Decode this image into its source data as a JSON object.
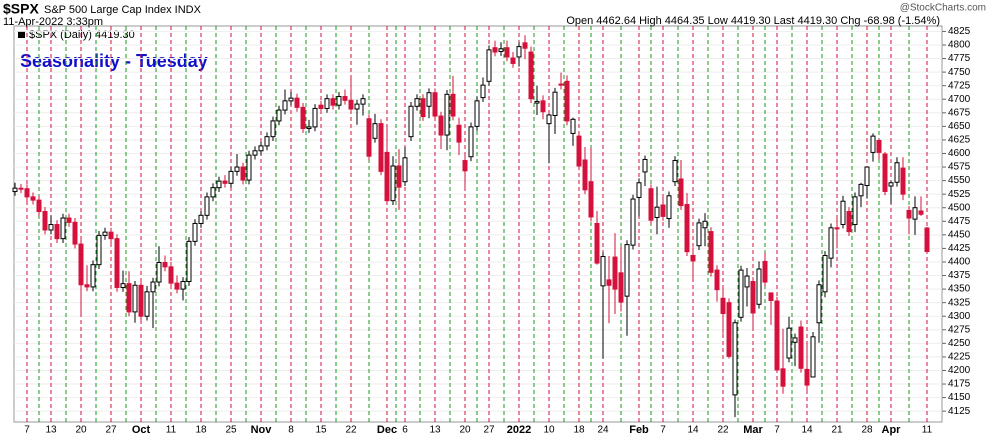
{
  "chart_data": {
    "type": "candlestick",
    "title": "$SPX",
    "subtitle": "S&P 500 Large Cap Index INDX",
    "date": "11-Apr-2022 3:33pm",
    "quote": "Open 4462.64 High 4464.35 Low 4419.30 Last 4419.30 Chg -68.98 (-1.54%)",
    "credit": "@StockCharts.com",
    "legend": "$SPX (Daily) 4419.30",
    "annotation": "Seasonality - Tuesday",
    "up_color": "#000000",
    "down_color": "#d6103c",
    "annotation_color": "#1010cc",
    "grid": true,
    "ylim": [
      4105,
      4835
    ],
    "yticks": [
      4125,
      4150,
      4175,
      4200,
      4225,
      4250,
      4275,
      4300,
      4325,
      4350,
      4375,
      4400,
      4425,
      4450,
      4475,
      4500,
      4525,
      4550,
      4575,
      4600,
      4625,
      4650,
      4675,
      4700,
      4725,
      4750,
      4775,
      4800,
      4825
    ],
    "categories": [
      null,
      null,
      "7",
      null,
      null,
      null,
      "13",
      null,
      null,
      null,
      null,
      "20",
      null,
      null,
      null,
      null,
      "27",
      null,
      null,
      null,
      null,
      "Oct",
      null,
      null,
      null,
      null,
      "11",
      null,
      null,
      null,
      null,
      "18",
      null,
      null,
      null,
      null,
      "25",
      null,
      null,
      null,
      null,
      "Nov",
      null,
      null,
      null,
      null,
      "8",
      null,
      null,
      null,
      null,
      "15",
      null,
      null,
      null,
      null,
      "22",
      null,
      null,
      null,
      null,
      null,
      "Dec",
      null,
      null,
      "6",
      null,
      null,
      null,
      null,
      "13",
      null,
      null,
      null,
      null,
      "20",
      null,
      null,
      null,
      "27",
      null,
      null,
      null,
      null,
      "2022",
      null,
      null,
      null,
      null,
      "10",
      null,
      null,
      null,
      null,
      "18",
      null,
      null,
      null,
      "24",
      null,
      null,
      null,
      null,
      null,
      "Feb",
      null,
      null,
      null,
      "7",
      null,
      null,
      null,
      null,
      "14",
      null,
      null,
      null,
      null,
      "22",
      null,
      null,
      null,
      null,
      "Mar",
      null,
      null,
      null,
      "7",
      null,
      null,
      null,
      null,
      "14",
      null,
      null,
      null,
      null,
      "21",
      null,
      null,
      null,
      null,
      "28",
      null,
      null,
      null,
      "Apr",
      null,
      null,
      null,
      null,
      null,
      "11"
    ],
    "open": [
      4530,
      4536,
      4535,
      4520,
      4514,
      4493,
      4459,
      4469,
      4443,
      4481,
      4473,
      4433,
      4358,
      4354,
      4395,
      4449,
      4455,
      4443,
      4353,
      4360,
      4308,
      4357,
      4300,
      4345,
      4363,
      4399,
      4391,
      4361,
      4350,
      4364,
      4438,
      4471,
      4486,
      4520,
      4537,
      4549,
      4545,
      4567,
      4575,
      4551,
      4597,
      4605,
      4614,
      4631,
      4660,
      4680,
      4697,
      4702,
      4685,
      4646,
      4649,
      4689,
      4683,
      4701,
      4689,
      4705,
      4698,
      4682,
      4691,
      4664,
      4628,
      4655,
      4602,
      4513,
      4577,
      4548,
      4631,
      4687,
      4701,
      4687,
      4712,
      4669,
      4634,
      4709,
      4652,
      4587,
      4594,
      4650,
      4703,
      4733,
      4795,
      4788,
      4795,
      4776,
      4778,
      4804,
      4787,
      4693,
      4697,
      4655,
      4670,
      4728,
      4733,
      4637,
      4632,
      4588,
      4548,
      4471,
      4356,
      4367,
      4409,
      4380,
      4337,
      4431,
      4519,
      4566,
      4535,
      4482,
      4505,
      4480,
      4548,
      4553,
      4506,
      4412,
      4430,
      4463,
      4456,
      4385,
      4333,
      4325,
      4155,
      4298,
      4354,
      4364,
      4322,
      4401,
      4343,
      4328,
      4203,
      4223,
      4252,
      4280,
      4202,
      4188,
      4288,
      4345,
      4407,
      4463,
      4469,
      4493,
      4469,
      4522,
      4541,
      4602,
      4624,
      4599,
      4540,
      4547,
      4573,
      4495,
      4479,
      4494,
      4462.64
    ],
    "high": [
      4546,
      4544,
      4543,
      4528,
      4522,
      4501,
      4486,
      4477,
      4489,
      4489,
      4481,
      4441,
      4394,
      4403,
      4457,
      4463,
      4463,
      4451,
      4384,
      4383,
      4365,
      4365,
      4356,
      4371,
      4429,
      4412,
      4400,
      4375,
      4372,
      4446,
      4479,
      4494,
      4528,
      4545,
      4557,
      4560,
      4575,
      4599,
      4583,
      4605,
      4613,
      4622,
      4639,
      4668,
      4688,
      4718,
      4714,
      4710,
      4693,
      4662,
      4691,
      4697,
      4709,
      4709,
      4713,
      4718,
      4744,
      4699,
      4709,
      4672,
      4673,
      4663,
      4652,
      4595,
      4608,
      4612,
      4695,
      4709,
      4709,
      4720,
      4720,
      4677,
      4717,
      4743,
      4666,
      4596,
      4657,
      4705,
      4740,
      4799,
      4808,
      4805,
      4808,
      4787,
      4805,
      4818,
      4797,
      4725,
      4707,
      4673,
      4721,
      4749,
      4744,
      4666,
      4640,
      4612,
      4611,
      4494,
      4418,
      4411,
      4453,
      4429,
      4440,
      4524,
      4554,
      4596,
      4543,
      4539,
      4521,
      4530,
      4595,
      4588,
      4527,
      4427,
      4480,
      4490,
      4464,
      4394,
      4357,
      4333,
      4294,
      4393,
      4389,
      4372,
      4401,
      4417,
      4343,
      4336,
      4277,
      4299,
      4268,
      4292,
      4247,
      4271,
      4366,
      4420,
      4471,
      4481,
      4522,
      4501,
      4528,
      4546,
      4575,
      4637,
      4627,
      4603,
      4549,
      4593,
      4593,
      4503,
      4521,
      4521,
      4464.35
    ],
    "low": [
      4522,
      4527,
      4512,
      4506,
      4485,
      4451,
      4451,
      4435,
      4435,
      4465,
      4425,
      4305,
      4346,
      4346,
      4387,
      4441,
      4435,
      4345,
      4345,
      4300,
      4288,
      4288,
      4292,
      4278,
      4355,
      4383,
      4353,
      4342,
      4329,
      4356,
      4430,
      4463,
      4478,
      4512,
      4529,
      4537,
      4537,
      4559,
      4543,
      4543,
      4589,
      4597,
      4606,
      4623,
      4652,
      4672,
      4689,
      4677,
      4638,
      4638,
      4641,
      4675,
      4675,
      4681,
      4681,
      4690,
      4674,
      4653,
      4670,
      4587,
      4620,
      4560,
      4510,
      4505,
      4496,
      4540,
      4623,
      4679,
      4660,
      4665,
      4661,
      4608,
      4606,
      4661,
      4597,
      4532,
      4586,
      4642,
      4695,
      4725,
      4779,
      4780,
      4770,
      4758,
      4760,
      4774,
      4693,
      4671,
      4663,
      4582,
      4636,
      4718,
      4652,
      4614,
      4569,
      4525,
      4475,
      4395,
      4222,
      4287,
      4304,
      4309,
      4264,
      4423,
      4484,
      4540,
      4469,
      4451,
      4476,
      4463,
      4540,
      4496,
      4411,
      4365,
      4422,
      4429,
      4373,
      4327,
      4268,
      4222,
      4114,
      4290,
      4318,
      4277,
      4314,
      4355,
      4284,
      4199,
      4157,
      4215,
      4208,
      4196,
      4161,
      4187,
      4251,
      4335,
      4390,
      4425,
      4462,
      4448,
      4455,
      4501,
      4517,
      4585,
      4589,
      4523,
      4507,
      4539,
      4514,
      4451,
      4450,
      4485,
      4419.3
    ],
    "close": [
      4536,
      4535,
      4520,
      4514,
      4493,
      4459,
      4469,
      4443,
      4481,
      4473,
      4433,
      4358,
      4354,
      4395,
      4449,
      4455,
      4443,
      4353,
      4360,
      4308,
      4357,
      4300,
      4345,
      4363,
      4399,
      4391,
      4361,
      4350,
      4364,
      4438,
      4471,
      4486,
      4520,
      4537,
      4549,
      4545,
      4567,
      4575,
      4551,
      4597,
      4605,
      4614,
      4631,
      4660,
      4680,
      4697,
      4702,
      4685,
      4646,
      4649,
      4683,
      4683,
      4701,
      4689,
      4705,
      4698,
      4682,
      4691,
      4701,
      4595,
      4655,
      4567,
      4513,
      4577,
      4538,
      4592,
      4687,
      4701,
      4668,
      4712,
      4669,
      4634,
      4709,
      4669,
      4621,
      4568,
      4649,
      4697,
      4726,
      4791,
      4787,
      4793,
      4778,
      4766,
      4797,
      4794,
      4701,
      4696,
      4677,
      4671,
      4713,
      4726,
      4660,
      4663,
      4577,
      4533,
      4483,
      4398,
      4410,
      4357,
      4350,
      4326,
      4432,
      4516,
      4546,
      4589,
      4477,
      4501,
      4484,
      4522,
      4587,
      4504,
      4419,
      4402,
      4472,
      4475,
      4381,
      4349,
      4305,
      4226,
      4288,
      4385,
      4374,
      4306,
      4387,
      4363,
      4329,
      4201,
      4171,
      4278,
      4260,
      4204,
      4173,
      4262,
      4358,
      4412,
      4463,
      4461,
      4512,
      4456,
      4520,
      4543,
      4575,
      4632,
      4602,
      4530,
      4546,
      4583,
      4525,
      4481,
      4500,
      4488,
      4419.3
    ]
  }
}
